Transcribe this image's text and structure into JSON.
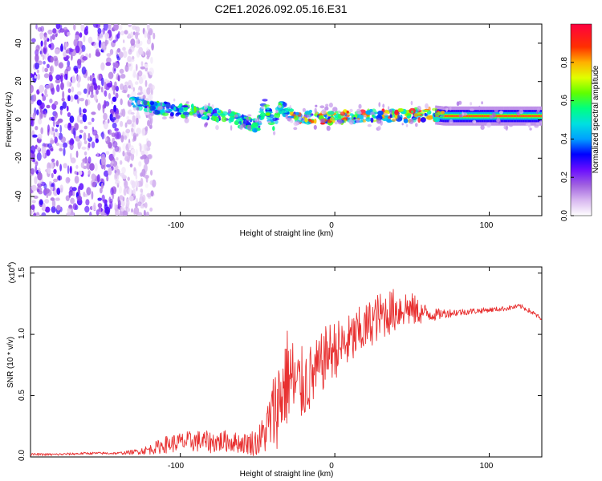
{
  "title": "C2E1.2026.092.05.16.E31",
  "chart_data": [
    {
      "type": "heatmap",
      "title": "C2E1.2026.092.05.16.E31",
      "xlabel": "Height of straight line (km)",
      "ylabel": "Frequency (Hz)",
      "xlim": [
        -197,
        134
      ],
      "ylim": [
        -50,
        50
      ],
      "xticks": [
        -100,
        0,
        100
      ],
      "xtick_labels": [
        "-100",
        "0",
        "100"
      ],
      "yticks": [
        -40,
        -20,
        0,
        20,
        40
      ],
      "ytick_labels": [
        "-40",
        "-20",
        "0",
        "20",
        "40"
      ],
      "colorbar": {
        "label": "Normalized spectral amplitude",
        "range": [
          0.0,
          1.0
        ],
        "ticks": [
          0.0,
          0.2,
          0.4,
          0.6,
          0.8
        ],
        "tick_labels": [
          "0.0",
          "0.2",
          "0.4",
          "0.6",
          "0.8"
        ],
        "colors": [
          "#ffffff",
          "#d8b8f0",
          "#a060e0",
          "#6a0dff",
          "#0000ff",
          "#00a0ff",
          "#00e0e0",
          "#00ff80",
          "#60ff00",
          "#e0ff00",
          "#ffb000",
          "#ff3000",
          "#ff0040"
        ]
      },
      "regions": [
        {
          "name": "noise",
          "x_range": [
            -197,
            -117
          ],
          "freq_range": [
            -50,
            50
          ],
          "amplitude": [
            0.1,
            0.3
          ]
        },
        {
          "name": "signal-band",
          "x_range": [
            -132,
            134
          ],
          "center_freq_hz": 2,
          "amplitude": [
            0.3,
            1.0
          ]
        }
      ],
      "signal_track": {
        "x": [
          -132,
          -115,
          -100,
          -85,
          -70,
          -60,
          -50,
          -45,
          -40,
          -35,
          -30,
          -25,
          -20,
          -10,
          0,
          20,
          40,
          60,
          70,
          100,
          134
        ],
        "freq": [
          9,
          6,
          5,
          4,
          2,
          -1,
          -3,
          8,
          -3,
          7,
          4,
          2,
          2,
          1,
          1,
          2,
          2,
          3,
          2,
          2,
          2
        ]
      }
    },
    {
      "type": "line",
      "xlabel": "Height of straight line (km)",
      "ylabel": "SNR (10 * v/v)",
      "y_scale_label": "(x10",
      "y_scale_exp": "4",
      "xlim": [
        -197,
        134
      ],
      "ylim": [
        0,
        1.55
      ],
      "xticks": [
        -100,
        0,
        100
      ],
      "xtick_labels": [
        "-100",
        "0",
        "100"
      ],
      "yticks": [
        0.0,
        0.5,
        1.0,
        1.5
      ],
      "ytick_labels": [
        "0.0",
        "0.5",
        "1.0",
        "1.5"
      ],
      "series": [
        {
          "name": "SNR",
          "color": "#e83030",
          "x": [
            -197,
            -180,
            -160,
            -140,
            -130,
            -120,
            -110,
            -100,
            -90,
            -80,
            -70,
            -60,
            -50,
            -45,
            -40,
            -35,
            -30,
            -25,
            -20,
            -15,
            -10,
            -5,
            0,
            5,
            10,
            15,
            20,
            25,
            30,
            35,
            40,
            45,
            50,
            55,
            60,
            65,
            70,
            80,
            90,
            100,
            110,
            120,
            125,
            130,
            134
          ],
          "y": [
            0.02,
            0.02,
            0.03,
            0.03,
            0.04,
            0.06,
            0.1,
            0.12,
            0.13,
            0.12,
            0.13,
            0.11,
            0.12,
            0.2,
            0.35,
            0.5,
            0.68,
            0.55,
            0.6,
            0.65,
            0.72,
            0.85,
            0.88,
            0.9,
            0.95,
            1.0,
            1.05,
            1.12,
            1.15,
            1.18,
            1.2,
            1.22,
            1.2,
            1.18,
            1.17,
            1.16,
            1.17,
            1.18,
            1.19,
            1.2,
            1.21,
            1.23,
            1.2,
            1.16,
            1.12
          ],
          "noise_amp": [
            0.01,
            0.01,
            0.01,
            0.01,
            0.02,
            0.04,
            0.07,
            0.08,
            0.09,
            0.09,
            0.09,
            0.08,
            0.12,
            0.18,
            0.32,
            0.4,
            0.42,
            0.36,
            0.3,
            0.28,
            0.26,
            0.24,
            0.24,
            0.23,
            0.22,
            0.22,
            0.2,
            0.2,
            0.2,
            0.19,
            0.18,
            0.16,
            0.14,
            0.1,
            0.07,
            0.05,
            0.04,
            0.03,
            0.025,
            0.02,
            0.02,
            0.02,
            0.02,
            0.02,
            0.02
          ]
        }
      ]
    }
  ]
}
